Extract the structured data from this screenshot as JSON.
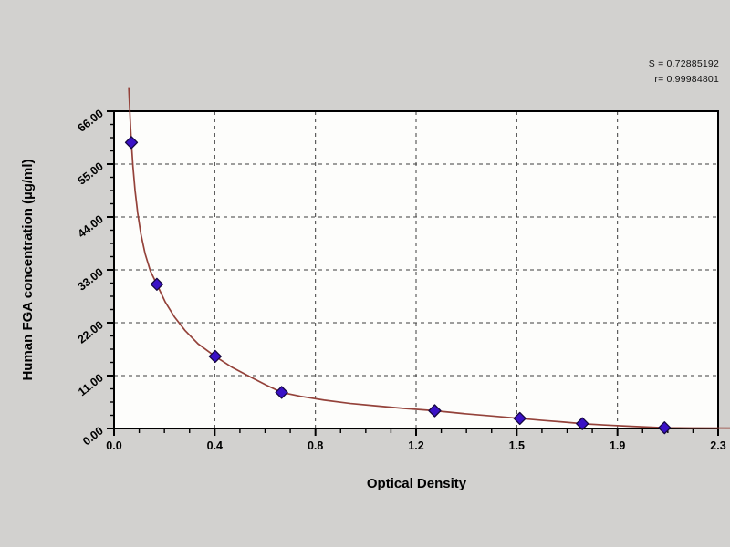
{
  "figure": {
    "background": "#d2d1cf",
    "plot_background": "#fdfdfb",
    "frame_color": "#000000",
    "grid_color": "#3d3d3d",
    "curve_color": "#94423a",
    "point_fill": "#3a11c6",
    "point_stroke": "#150741",
    "stats": [
      "S = 0.72885192",
      "r= 0.99984801"
    ]
  },
  "chart_data": {
    "type": "scatter",
    "title": "",
    "xlabel": "Optical Density",
    "ylabel": "Human FGA concentration (µg/ml)",
    "xlim": [
      0,
      2.3
    ],
    "ylim": [
      0,
      66
    ],
    "grid": true,
    "legend_position": "none",
    "x_tick_values": [
      0,
      0.3833,
      0.7667,
      1.15,
      1.5333,
      1.9167,
      2.3
    ],
    "x_tick_labels": [
      "0.0",
      "0.4",
      "0.8",
      "1.2",
      "1.5",
      "1.9",
      "2.3"
    ],
    "y_tick_values": [
      0,
      11,
      22,
      33,
      44,
      55,
      66
    ],
    "y_tick_labels": [
      "0.00",
      "11.00",
      "22.00",
      "33.00",
      "44.00",
      "55.00",
      "66.00"
    ],
    "minor_divisions": 4,
    "annotations": [
      "S = 0.72885192",
      "r= 0.99984801"
    ],
    "series": [
      {
        "name": "standard-points",
        "type": "scatter",
        "marker": "diamond",
        "points": [
          [
            0.066,
            59.5
          ],
          [
            0.163,
            30.0
          ],
          [
            0.385,
            15.0
          ],
          [
            0.638,
            7.5
          ],
          [
            1.221,
            3.7
          ],
          [
            1.545,
            2.1
          ],
          [
            1.783,
            1.0
          ],
          [
            2.096,
            0.15
          ]
        ]
      },
      {
        "name": "fitted-curve",
        "type": "line",
        "points": [
          [
            0.056,
            71
          ],
          [
            0.06,
            66
          ],
          [
            0.063,
            62.5
          ],
          [
            0.066,
            59.5
          ],
          [
            0.072,
            54.5
          ],
          [
            0.08,
            49.5
          ],
          [
            0.09,
            44.8
          ],
          [
            0.102,
            40.5
          ],
          [
            0.118,
            36.4
          ],
          [
            0.138,
            32.8
          ],
          [
            0.163,
            30.0
          ],
          [
            0.195,
            26.3
          ],
          [
            0.23,
            23.2
          ],
          [
            0.27,
            20.4
          ],
          [
            0.32,
            17.6
          ],
          [
            0.385,
            15.0
          ],
          [
            0.45,
            12.7
          ],
          [
            0.52,
            10.7
          ],
          [
            0.58,
            9.0
          ],
          [
            0.638,
            7.5
          ],
          [
            0.71,
            6.7
          ],
          [
            0.8,
            5.9
          ],
          [
            0.9,
            5.2
          ],
          [
            1.0,
            4.7
          ],
          [
            1.1,
            4.2
          ],
          [
            1.221,
            3.7
          ],
          [
            1.33,
            3.1
          ],
          [
            1.44,
            2.6
          ],
          [
            1.545,
            2.1
          ],
          [
            1.63,
            1.7
          ],
          [
            1.71,
            1.35
          ],
          [
            1.783,
            1.0
          ],
          [
            1.87,
            0.72
          ],
          [
            1.97,
            0.45
          ],
          [
            2.096,
            0.15
          ],
          [
            2.2,
            0.1
          ],
          [
            2.35,
            0.07
          ]
        ]
      }
    ]
  }
}
